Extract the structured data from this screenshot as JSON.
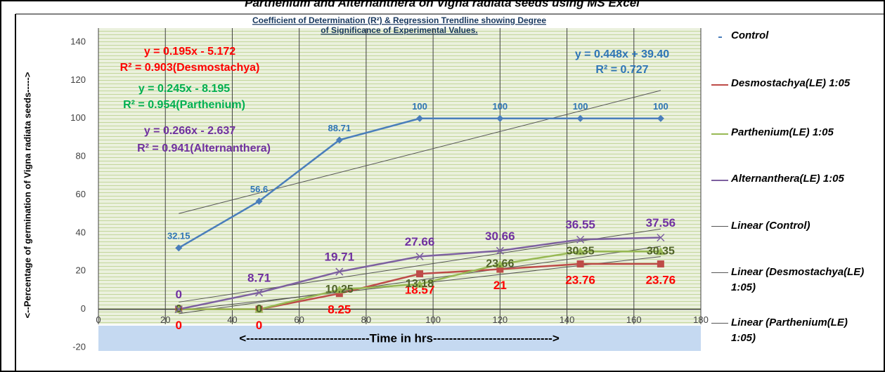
{
  "top_text": "Parthenium  and Alternanthera on Vigna radiata seeds using MS Excel",
  "chart_data": {
    "type": "line",
    "title": "Coefficient of Determination (R²)  & Regression Trendline  showing Degree",
    "subtitle": "of Significance of Experimental  Values.",
    "y_label": "<--Percentage of germination of Vigna radiata seeds----->",
    "x_label": "<-------------------------------Time  in hrs------------------------------>",
    "x": [
      24,
      48,
      72,
      96,
      120,
      144,
      168
    ],
    "series": [
      {
        "name": "Control",
        "color": "#4a7ebb",
        "marker": "diamond",
        "label_color": "#2e75b6",
        "values": [
          32.15,
          56.6,
          88.71,
          100,
          100,
          100,
          100
        ]
      },
      {
        "name": "Desmostachya(LE) 1:05",
        "color": "#be4b48",
        "marker": "square",
        "label_color": "#ff0000",
        "values": [
          0,
          0,
          8.25,
          18.57,
          21,
          23.76,
          23.76
        ]
      },
      {
        "name": "Parthenium(LE) 1:05",
        "color": "#98b954",
        "marker": "triangle",
        "label_color": "#4f6228",
        "values": [
          0,
          0,
          10.25,
          13.18,
          23.66,
          30.35,
          30.35
        ]
      },
      {
        "name": "Alternanthera(LE) 1:05",
        "color": "#7d60a0",
        "marker": "x",
        "label_color": "#7030a0",
        "values": [
          0,
          8.71,
          19.71,
          27.66,
          30.66,
          36.55,
          37.56
        ]
      }
    ],
    "trendlines": [
      {
        "name": "Linear (Control)",
        "series": 0,
        "slope": 0.448,
        "intercept": 39.4
      },
      {
        "name": "Linear (Desmostachya(LE) 1:05)",
        "series": 1,
        "slope": 0.195,
        "intercept": -5.172
      },
      {
        "name": "Linear (Parthenium(LE) 1:05)",
        "series": 2,
        "slope": 0.245,
        "intercept": -8.195
      },
      {
        "series": 3,
        "slope": 0.266,
        "intercept": -2.637
      }
    ],
    "annotations": [
      {
        "text": "y = 0.195x - 5.172",
        "color": "#ff0000"
      },
      {
        "text": "R² = 0.903(Desmostachya)",
        "color": "#ff0000"
      },
      {
        "text": "y = 0.245x - 8.195",
        "color": "#00b050"
      },
      {
        "text": "R² = 0.954(Parthenium)",
        "color": "#00b050"
      },
      {
        "text": "y = 0.266x - 2.637",
        "color": "#7030a0"
      },
      {
        "text": "R² = 0.941(Alternanthera)",
        "color": "#7030a0"
      },
      {
        "text": "y = 0.448x + 39.40",
        "color": "#2e75b6"
      },
      {
        "text": "R² = 0.727",
        "color": "#2e75b6"
      }
    ],
    "xlim": [
      0,
      180
    ],
    "xticks": [
      0,
      20,
      40,
      60,
      80,
      100,
      120,
      140,
      160,
      180
    ],
    "ylim": [
      -20,
      140
    ],
    "yticks": [
      -20,
      0,
      20,
      40,
      60,
      80,
      100,
      120,
      140
    ],
    "grid": true
  }
}
